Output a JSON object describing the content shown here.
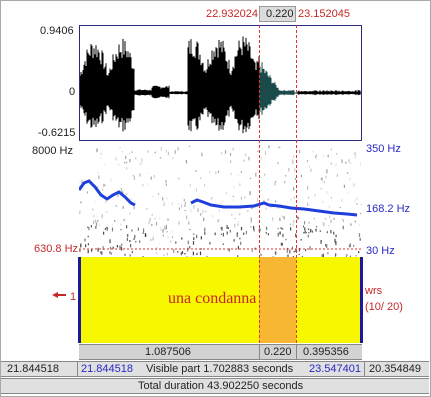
{
  "header": {
    "sel_start": "22.932024",
    "sel_dur": "0.220",
    "sel_end": "23.152045"
  },
  "waveform": {
    "y_max": "0.9406",
    "y_zero": "0",
    "y_min": "-0.6215"
  },
  "spectrogram": {
    "freq_top": "8000 Hz",
    "freq_bottom": "630.8 Hz",
    "pitch_top": "350 Hz",
    "pitch_cursor": "168.2 Hz",
    "pitch_bottom": "30 Hz"
  },
  "tier": {
    "number": "1",
    "text": "una condanna",
    "right_label_1": "wrs",
    "right_label_2": "(10/ 20)"
  },
  "segment_row": {
    "left": "1.087506",
    "mid": "0.220",
    "right": "0.395356"
  },
  "time_row": {
    "total_start": "21.844518",
    "visible_start": "21.844518",
    "visible_part": "Visible part 1.702883 seconds",
    "visible_end": "23.547401",
    "total_end": "20.354849"
  },
  "footer": {
    "total_duration": "Total duration 43.902250 seconds"
  },
  "colors": {
    "tier_fill": "#f7f700",
    "selection_fill": "#f7b733",
    "pitch_curve": "#1f3fdc",
    "accent_red": "#c62828",
    "accent_blue": "#2828c6"
  },
  "icons": {
    "tier_pointer": "pointing-hand-icon"
  }
}
